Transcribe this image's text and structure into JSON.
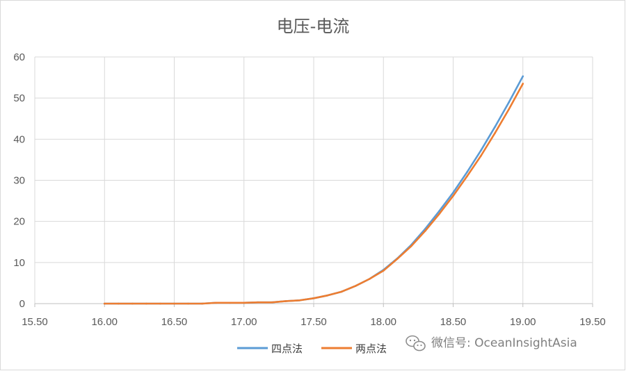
{
  "chart_data": {
    "type": "line",
    "title": "电压-电流",
    "xlabel": "",
    "ylabel": "",
    "xlim": [
      15.5,
      19.5
    ],
    "ylim": [
      0,
      60
    ],
    "x_ticks": [
      "15.50",
      "16.00",
      "16.50",
      "17.00",
      "17.50",
      "18.00",
      "18.50",
      "19.00",
      "19.50"
    ],
    "y_ticks": [
      "0",
      "10",
      "20",
      "30",
      "40",
      "50",
      "60"
    ],
    "grid": true,
    "legend_position": "bottom",
    "x": [
      16.0,
      16.1,
      16.2,
      16.3,
      16.4,
      16.5,
      16.6,
      16.7,
      16.8,
      16.9,
      17.0,
      17.1,
      17.2,
      17.3,
      17.4,
      17.5,
      17.6,
      17.7,
      17.8,
      17.9,
      18.0,
      18.1,
      18.2,
      18.3,
      18.4,
      18.5,
      18.6,
      18.7,
      18.8,
      18.9,
      19.0
    ],
    "series": [
      {
        "name": "四点法",
        "color": "#5b9bd5",
        "values": [
          0,
          0,
          0,
          0,
          0,
          0,
          0,
          0,
          0.2,
          0.2,
          0.2,
          0.3,
          0.3,
          0.6,
          0.8,
          1.3,
          2.0,
          2.9,
          4.3,
          6.0,
          8.2,
          11.0,
          14.3,
          18.2,
          22.5,
          27.0,
          32.0,
          37.3,
          43.0,
          49.0,
          55.3
        ]
      },
      {
        "name": "两点法",
        "color": "#ed7d31",
        "values": [
          0,
          0,
          0,
          0,
          0,
          0,
          0,
          0,
          0.2,
          0.2,
          0.2,
          0.3,
          0.3,
          0.6,
          0.8,
          1.3,
          2.0,
          2.9,
          4.3,
          6.0,
          8.0,
          10.9,
          14.0,
          17.7,
          21.8,
          26.2,
          31.0,
          36.0,
          41.5,
          47.3,
          53.5
        ]
      }
    ]
  },
  "watermark": {
    "text": "微信号: OceanInsightAsia",
    "icon": "wechat-icon"
  }
}
